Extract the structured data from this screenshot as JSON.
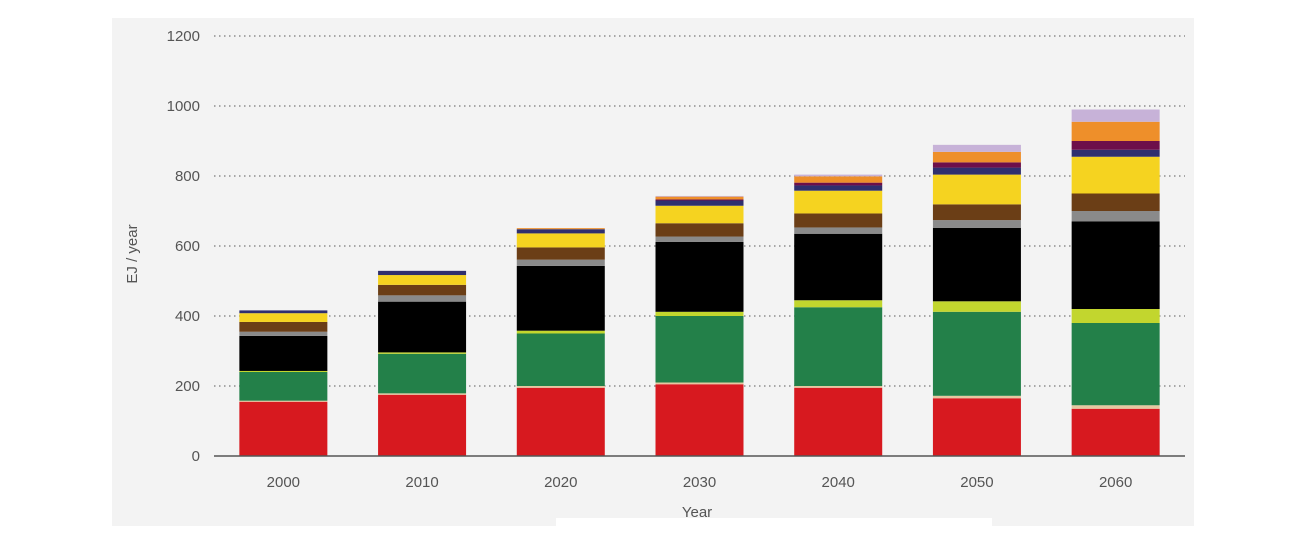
{
  "chart_data": {
    "type": "bar",
    "stacked": true,
    "title": "",
    "xlabel": "Year",
    "ylabel": "EJ / year",
    "ylim": [
      0,
      1200
    ],
    "yticks": [
      "0",
      "200",
      "400",
      "600",
      "800",
      "1000",
      "1200"
    ],
    "grid": "dotted horizontal",
    "legend": "none",
    "categories": [
      "2000",
      "2010",
      "2020",
      "2030",
      "2040",
      "2050",
      "2060"
    ],
    "series": [
      {
        "color": "#d7191f",
        "values": [
          155,
          175,
          195,
          205,
          195,
          165,
          135
        ]
      },
      {
        "color": "#e6c8a0",
        "values": [
          3,
          4,
          5,
          5,
          5,
          7,
          10
        ]
      },
      {
        "color": "#238049",
        "values": [
          82,
          113,
          150,
          190,
          225,
          240,
          235
        ]
      },
      {
        "color": "#c2d62e",
        "values": [
          3,
          4,
          8,
          12,
          20,
          30,
          40
        ]
      },
      {
        "color": "#000000",
        "values": [
          100,
          145,
          185,
          200,
          190,
          210,
          250
        ]
      },
      {
        "color": "#8a8a8a",
        "values": [
          12,
          18,
          18,
          15,
          18,
          22,
          30
        ]
      },
      {
        "color": "#6b3e16",
        "values": [
          28,
          30,
          35,
          38,
          40,
          45,
          50
        ]
      },
      {
        "color": "#f5d320",
        "values": [
          25,
          28,
          40,
          50,
          65,
          85,
          105
        ]
      },
      {
        "color": "#2f2f6e",
        "values": [
          8,
          12,
          12,
          15,
          15,
          20,
          20
        ]
      },
      {
        "color": "#6d0f4a",
        "values": [
          0,
          0,
          0,
          3,
          8,
          15,
          25
        ]
      },
      {
        "color": "#ee8f2a",
        "values": [
          0,
          0,
          3,
          8,
          18,
          30,
          55
        ]
      },
      {
        "color": "#c7b2d8",
        "values": [
          0,
          0,
          0,
          2,
          5,
          20,
          35
        ]
      }
    ]
  }
}
